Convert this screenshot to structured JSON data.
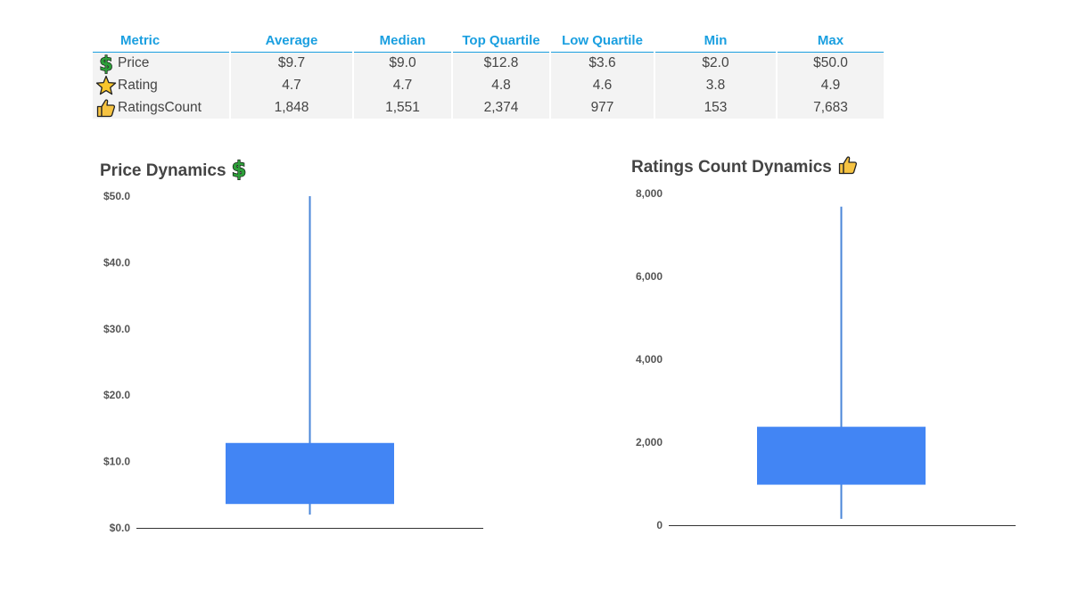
{
  "table": {
    "headers": [
      "Metric",
      "Average",
      "Median",
      "Top Quartile",
      "Low Quartile",
      "Min",
      "Max"
    ],
    "rows": [
      {
        "icon": "dollar-icon",
        "metric": "Price",
        "values": [
          "$9.7",
          "$9.0",
          "$12.8",
          "$3.6",
          "$2.0",
          "$50.0"
        ]
      },
      {
        "icon": "star-icon",
        "metric": "Rating",
        "values": [
          "4.7",
          "4.7",
          "4.8",
          "4.6",
          "3.8",
          "4.9"
        ]
      },
      {
        "icon": "thumbs-up-icon",
        "metric": "RatingsCount",
        "values": [
          "1,848",
          "1,551",
          "2,374",
          "977",
          "153",
          "7,683"
        ]
      }
    ]
  },
  "colors": {
    "header_text": "#1a9fe0",
    "box_fill": "#4285f4",
    "whisker": "#4a86d8",
    "dollar_green": "#2e9e3a",
    "star_yellow": "#f9c62b",
    "thumb_yellow": "#f6c342"
  },
  "chart_data": [
    {
      "type": "box",
      "title": "Price Dynamics",
      "title_icon": "dollar-icon",
      "ylim": [
        0,
        50
      ],
      "tick_values": [
        0,
        10,
        20,
        30,
        40,
        50
      ],
      "tick_labels": [
        "$0.0",
        "$10.0",
        "$20.0",
        "$30.0",
        "$40.0",
        "$50.0"
      ],
      "box": {
        "min": 2.0,
        "q1": 3.6,
        "q3": 12.8,
        "max": 50.0
      },
      "grid": false
    },
    {
      "type": "box",
      "title": "Ratings Count Dynamics",
      "title_icon": "thumbs-up-icon",
      "ylim": [
        0,
        8000
      ],
      "tick_values": [
        0,
        2000,
        4000,
        6000,
        8000
      ],
      "tick_labels": [
        "0",
        "2,000",
        "4,000",
        "6,000",
        "8,000"
      ],
      "box": {
        "min": 153,
        "q1": 977,
        "q3": 2374,
        "max": 7683
      },
      "grid": false
    }
  ]
}
